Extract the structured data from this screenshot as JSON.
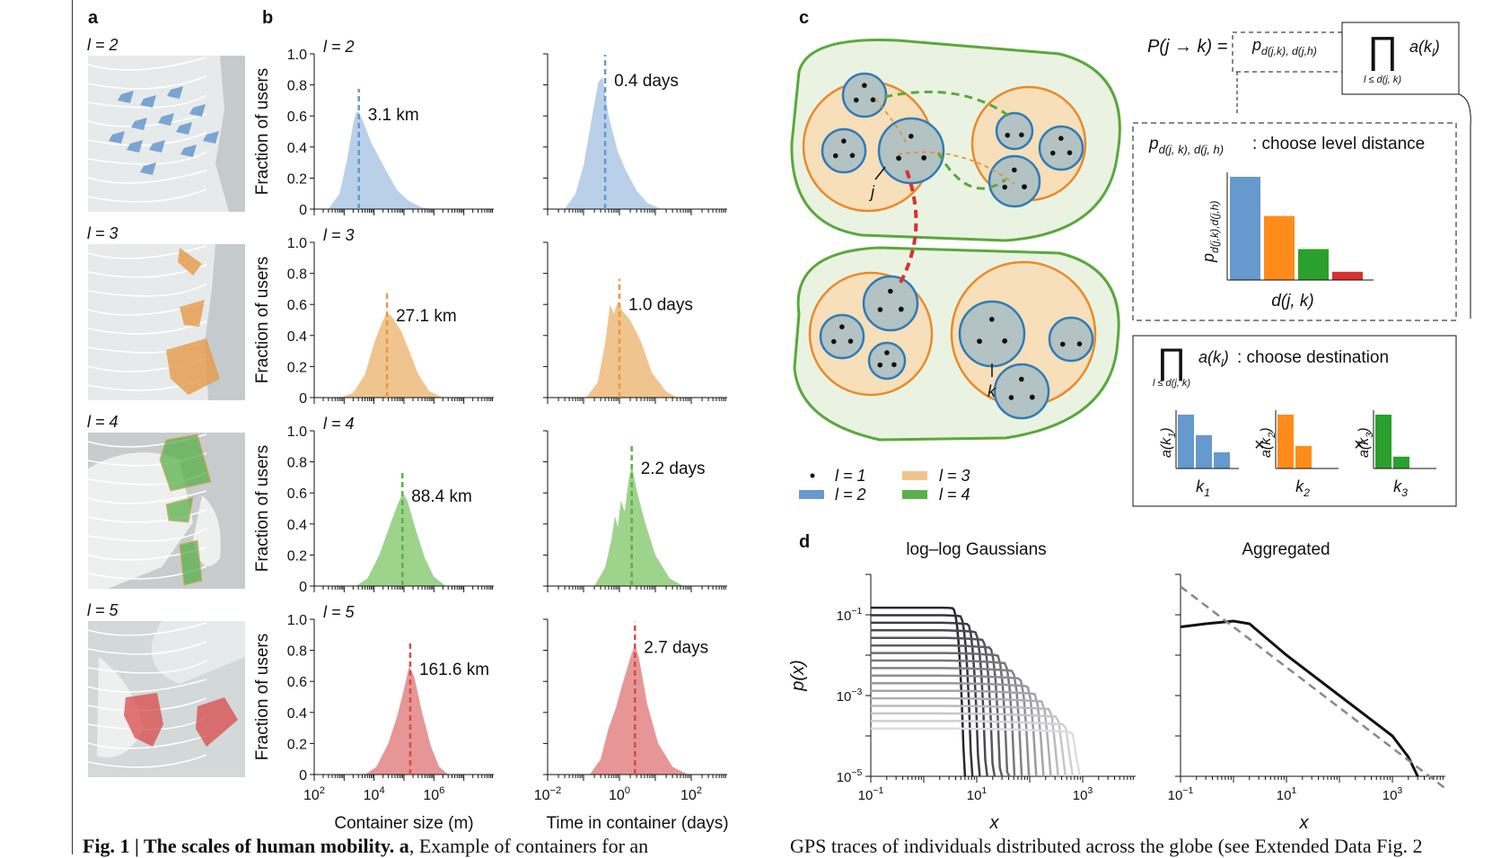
{
  "panel_labels": {
    "a": "a",
    "b": "b",
    "c": "c",
    "d": "d"
  },
  "level_labels": [
    "l = 2",
    "l = 3",
    "l = 4",
    "l = 5"
  ],
  "colors": {
    "l2": "#6699cc",
    "l3": "#e59a47",
    "l4": "#5ab14a",
    "l5": "#d94a4a",
    "fill_l2": "#b9d0e8",
    "fill_l3": "#f0c48e",
    "fill_l4": "#9ed38c",
    "fill_l5": "#e69696",
    "green_outline": "#5aa83c",
    "orange_ring": "#e98a2c",
    "blue_ring": "#2f7bb8",
    "red_dash": "#d9312d"
  },
  "chart_data": [
    {
      "type": "area",
      "panel": "b",
      "level": "l = 2",
      "xlabel": "",
      "ylabel": "Fraction of users",
      "xscale": "log",
      "xlim": [
        100,
        100000000
      ],
      "ylim": [
        0,
        1.0
      ],
      "yticks": [
        "0",
        "0.2",
        "0.4",
        "0.6",
        "0.8",
        "1.0"
      ],
      "median_label": "3.1 km",
      "median_x": 3100,
      "points": [
        [
          300,
          0
        ],
        [
          700,
          0.1
        ],
        [
          1200,
          0.3
        ],
        [
          2000,
          0.55
        ],
        [
          2500,
          0.62
        ],
        [
          3000,
          0.63
        ],
        [
          4000,
          0.58
        ],
        [
          8000,
          0.43
        ],
        [
          15000,
          0.33
        ],
        [
          30000,
          0.22
        ],
        [
          60000,
          0.12
        ],
        [
          150000,
          0.05
        ],
        [
          400000,
          0.01
        ],
        [
          1000000,
          0
        ]
      ]
    },
    {
      "type": "area",
      "panel": "b",
      "level": "l = 2",
      "xlabel": "",
      "ylabel": "",
      "xscale": "log",
      "xlim": [
        0.01,
        1000
      ],
      "ylim": [
        0,
        1.0
      ],
      "median_label": "0.4 days",
      "median_x": 0.4,
      "points": [
        [
          0.03,
          0
        ],
        [
          0.06,
          0.1
        ],
        [
          0.1,
          0.28
        ],
        [
          0.18,
          0.62
        ],
        [
          0.26,
          0.82
        ],
        [
          0.34,
          0.85
        ],
        [
          0.5,
          0.6
        ],
        [
          0.9,
          0.37
        ],
        [
          1.5,
          0.25
        ],
        [
          3,
          0.12
        ],
        [
          6,
          0.04
        ],
        [
          15,
          0
        ]
      ]
    },
    {
      "type": "area",
      "panel": "b",
      "level": "l = 3",
      "xlabel": "",
      "ylabel": "Fraction of users",
      "xscale": "log",
      "xlim": [
        100,
        100000000
      ],
      "ylim": [
        0,
        1.0
      ],
      "yticks": [
        "0",
        "0.2",
        "0.4",
        "0.6",
        "0.8",
        "1.0"
      ],
      "median_label": "27.1 km",
      "median_x": 27100,
      "points": [
        [
          800,
          0
        ],
        [
          2000,
          0.03
        ],
        [
          5000,
          0.15
        ],
        [
          10000,
          0.35
        ],
        [
          18000,
          0.48
        ],
        [
          27000,
          0.55
        ],
        [
          40000,
          0.52
        ],
        [
          80000,
          0.43
        ],
        [
          150000,
          0.3
        ],
        [
          300000,
          0.15
        ],
        [
          700000,
          0.04
        ],
        [
          2000000,
          0
        ]
      ]
    },
    {
      "type": "area",
      "panel": "b",
      "level": "l = 3",
      "xlabel": "",
      "ylabel": "",
      "xscale": "log",
      "xlim": [
        0.01,
        1000
      ],
      "ylim": [
        0,
        1.0
      ],
      "median_label": "1.0 days",
      "median_x": 1.0,
      "points": [
        [
          0.12,
          0
        ],
        [
          0.25,
          0.1
        ],
        [
          0.4,
          0.35
        ],
        [
          0.55,
          0.6
        ],
        [
          0.7,
          0.54
        ],
        [
          0.9,
          0.62
        ],
        [
          1.2,
          0.56
        ],
        [
          2,
          0.5
        ],
        [
          4,
          0.36
        ],
        [
          8,
          0.16
        ],
        [
          20,
          0.04
        ],
        [
          40,
          0
        ]
      ]
    },
    {
      "type": "area",
      "panel": "b",
      "level": "l = 4",
      "xlabel": "",
      "ylabel": "Fraction of users",
      "xscale": "log",
      "xlim": [
        100,
        100000000
      ],
      "ylim": [
        0,
        1.0
      ],
      "yticks": [
        "0",
        "0.2",
        "0.4",
        "0.6",
        "0.8",
        "1.0"
      ],
      "median_label": "88.4 km",
      "median_x": 88400,
      "points": [
        [
          2500,
          0
        ],
        [
          6000,
          0.05
        ],
        [
          15000,
          0.2
        ],
        [
          35000,
          0.4
        ],
        [
          60000,
          0.52
        ],
        [
          90000,
          0.6
        ],
        [
          130000,
          0.55
        ],
        [
          250000,
          0.36
        ],
        [
          500000,
          0.18
        ],
        [
          1000000,
          0.06
        ],
        [
          2500000,
          0
        ]
      ]
    },
    {
      "type": "area",
      "panel": "b",
      "level": "l = 4",
      "xlabel": "",
      "ylabel": "",
      "xscale": "log",
      "xlim": [
        0.01,
        1000
      ],
      "ylim": [
        0,
        1.0
      ],
      "median_label": "2.2 days",
      "median_x": 2.2,
      "points": [
        [
          0.2,
          0
        ],
        [
          0.4,
          0.12
        ],
        [
          0.6,
          0.3
        ],
        [
          0.75,
          0.45
        ],
        [
          0.9,
          0.38
        ],
        [
          1.1,
          0.55
        ],
        [
          1.4,
          0.48
        ],
        [
          1.8,
          0.68
        ],
        [
          2.2,
          0.78
        ],
        [
          3,
          0.62
        ],
        [
          5,
          0.42
        ],
        [
          10,
          0.2
        ],
        [
          25,
          0.05
        ],
        [
          60,
          0
        ]
      ]
    },
    {
      "type": "area",
      "panel": "b",
      "level": "l = 5",
      "xlabel": "Container size (m)",
      "ylabel": "Fraction of users",
      "xscale": "log",
      "xlim": [
        100,
        100000000
      ],
      "ylim": [
        0,
        1.0
      ],
      "yticks": [
        "0",
        "0.2",
        "0.4",
        "0.6",
        "0.8",
        "1.0"
      ],
      "xticks": [
        "10^2",
        "10^4",
        "10^6"
      ],
      "median_label": "161.6 km",
      "median_x": 161600,
      "points": [
        [
          5000,
          0
        ],
        [
          12000,
          0.05
        ],
        [
          30000,
          0.2
        ],
        [
          60000,
          0.38
        ],
        [
          100000,
          0.55
        ],
        [
          150000,
          0.7
        ],
        [
          220000,
          0.63
        ],
        [
          400000,
          0.4
        ],
        [
          800000,
          0.18
        ],
        [
          1500000,
          0.05
        ],
        [
          3000000,
          0
        ]
      ]
    },
    {
      "type": "area",
      "panel": "b",
      "level": "l = 5",
      "xlabel": "Time in container (days)",
      "ylabel": "",
      "xscale": "log",
      "xlim": [
        0.01,
        1000
      ],
      "ylim": [
        0,
        1.0
      ],
      "xticks": [
        "10^-2",
        "10^0",
        "10^2"
      ],
      "median_label": "2.7 days",
      "median_x": 2.7,
      "points": [
        [
          0.15,
          0
        ],
        [
          0.3,
          0.1
        ],
        [
          0.5,
          0.3
        ],
        [
          0.8,
          0.43
        ],
        [
          1.2,
          0.58
        ],
        [
          2,
          0.75
        ],
        [
          2.7,
          0.84
        ],
        [
          3.5,
          0.75
        ],
        [
          6,
          0.45
        ],
        [
          12,
          0.2
        ],
        [
          30,
          0.05
        ],
        [
          80,
          0
        ]
      ]
    },
    {
      "type": "line",
      "panel": "d",
      "title": "log–log Gaussians",
      "xlabel": "x",
      "ylabel": "p(x)",
      "xscale": "log",
      "yscale": "log",
      "xlim": [
        0.1,
        10000
      ],
      "ylim": [
        1e-05,
        1
      ],
      "xticks": [
        "10^-1",
        "10^1",
        "10^3"
      ],
      "yticks": [
        "10^-1",
        "10^-3",
        "10^-5"
      ],
      "n_curves": 17
    },
    {
      "type": "line",
      "panel": "d",
      "title": "Aggregated",
      "xlabel": "x",
      "ylabel": "",
      "xscale": "log",
      "yscale": "log",
      "xlim": [
        0.1,
        10000
      ],
      "ylim": [
        1e-05,
        1
      ],
      "xticks": [
        "10^-1",
        "10^1",
        "10^3"
      ],
      "series": [
        {
          "style": "solid",
          "points": [
            [
              0.1,
              0.05
            ],
            [
              0.3,
              0.06
            ],
            [
              1,
              0.07
            ],
            [
              2,
              0.06
            ],
            [
              10,
              0.01
            ],
            [
              100,
              0.001
            ],
            [
              1000,
              0.0001
            ],
            [
              2000,
              3e-05
            ],
            [
              3000,
              1e-05
            ]
          ]
        },
        {
          "style": "dashed",
          "points": [
            [
              0.1,
              0.5
            ],
            [
              10000,
              5e-06
            ]
          ]
        }
      ]
    }
  ],
  "panel_c": {
    "formula_lhs": "P(j → k) =",
    "p_symbol": "p",
    "p_sub": "d(j,k), d(j,h)",
    "prod_symbol": "∏",
    "prod_sub": "l ≤ d(j, k)",
    "a_term": "a(k",
    "a_sub": "l",
    "a_close": ")",
    "level_box_p_sub": "d(j, k), d(j, h)",
    "level_box_title": ": choose level distance",
    "level_box_ylabel": "p",
    "level_box_ylabel_sub": "d(j,k),d(j,h)",
    "level_box_xlabel": "d(j, k)",
    "level_bars": [
      1.0,
      0.62,
      0.3,
      0.08
    ],
    "dest_box_title": ": choose destination",
    "dest_groups": [
      {
        "ylabel": "a(k",
        "ysub": "1",
        "xlabel": "k",
        "xsub": "1",
        "values": [
          1.0,
          0.62,
          0.3
        ]
      },
      {
        "ylabel": "a(k",
        "ysub": "2",
        "xlabel": "k",
        "xsub": "2",
        "values": [
          1.0,
          0.42
        ]
      },
      {
        "ylabel": "a(k",
        "ysub": "3",
        "xlabel": "k",
        "xsub": "3",
        "values": [
          1.0,
          0.22
        ]
      }
    ],
    "times": "×",
    "node_j": "j",
    "node_k": "k",
    "legend": [
      {
        "label": "l = 1",
        "kind": "dot"
      },
      {
        "label": "l = 3",
        "kind": "bar-orange"
      },
      {
        "label": "l = 2",
        "kind": "bar-blue"
      },
      {
        "label": "l = 4",
        "kind": "bar-green"
      }
    ]
  },
  "caption_left": {
    "bold": "Fig. 1 | The scales of human mobility. a",
    "rest": ", Example of containers for an"
  },
  "caption_right": "GPS traces of individuals distributed across the globe (see Extended Data Fig. 2"
}
